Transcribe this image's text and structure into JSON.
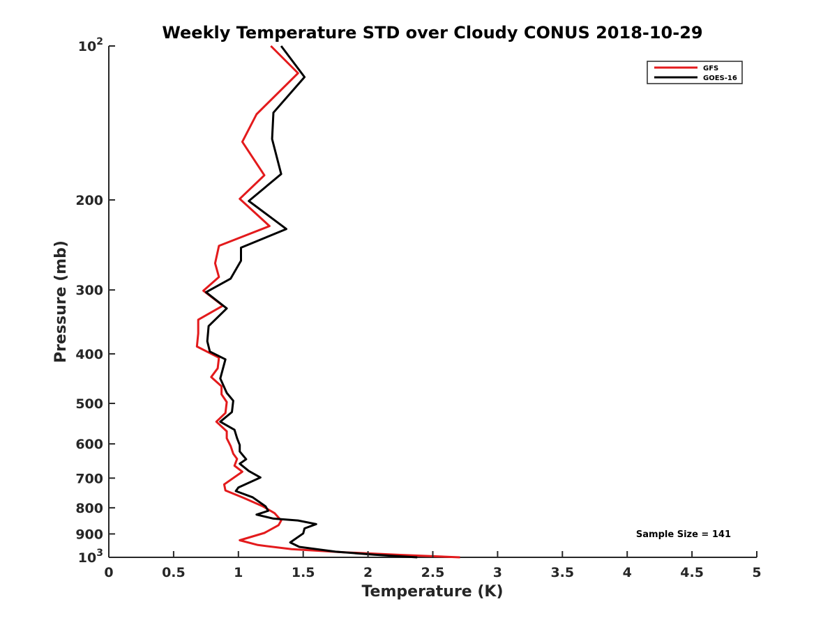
{
  "chart_data": {
    "type": "line",
    "title": "Weekly Temperature STD over Cloudy CONUS 2018-10-29",
    "xlabel": "Temperature (K)",
    "ylabel": "Pressure (mb)",
    "xlim": [
      0,
      5
    ],
    "ylim": [
      100,
      1000
    ],
    "y_scale": "log",
    "y_reversed": true,
    "grid": false,
    "legend_position": "top-right",
    "x_ticks": [
      {
        "value": 0,
        "label": "0"
      },
      {
        "value": 0.5,
        "label": "0.5"
      },
      {
        "value": 1,
        "label": "1"
      },
      {
        "value": 1.5,
        "label": "1.5"
      },
      {
        "value": 2,
        "label": "2"
      },
      {
        "value": 2.5,
        "label": "2.5"
      },
      {
        "value": 3,
        "label": "3"
      },
      {
        "value": 3.5,
        "label": "3.5"
      },
      {
        "value": 4,
        "label": "4"
      },
      {
        "value": 4.5,
        "label": "4.5"
      },
      {
        "value": 5,
        "label": "5"
      }
    ],
    "y_ticks": [
      {
        "value": 100,
        "base": "10",
        "exp": "2"
      },
      {
        "value": 200,
        "base": "200",
        "exp": ""
      },
      {
        "value": 300,
        "base": "300",
        "exp": ""
      },
      {
        "value": 400,
        "base": "400",
        "exp": ""
      },
      {
        "value": 500,
        "base": "500",
        "exp": ""
      },
      {
        "value": 600,
        "base": "600",
        "exp": ""
      },
      {
        "value": 700,
        "base": "700",
        "exp": ""
      },
      {
        "value": 800,
        "base": "800",
        "exp": ""
      },
      {
        "value": 900,
        "base": "900",
        "exp": ""
      },
      {
        "value": 1000,
        "base": "10",
        "exp": "3"
      }
    ],
    "series": [
      {
        "name": "GFS",
        "color": "#e31a1c",
        "points": [
          [
            1.25,
            100
          ],
          [
            1.46,
            113
          ],
          [
            1.14,
            136
          ],
          [
            1.03,
            154
          ],
          [
            1.2,
            179
          ],
          [
            1.01,
            199
          ],
          [
            1.24,
            225
          ],
          [
            0.85,
            246
          ],
          [
            0.82,
            266
          ],
          [
            0.85,
            283
          ],
          [
            0.73,
            301
          ],
          [
            0.88,
            322
          ],
          [
            0.69,
            343
          ],
          [
            0.69,
            365
          ],
          [
            0.68,
            387
          ],
          [
            0.85,
            407
          ],
          [
            0.84,
            427
          ],
          [
            0.79,
            444
          ],
          [
            0.87,
            463
          ],
          [
            0.87,
            480
          ],
          [
            0.91,
            497
          ],
          [
            0.9,
            522
          ],
          [
            0.83,
            543
          ],
          [
            0.91,
            567
          ],
          [
            0.91,
            585
          ],
          [
            0.94,
            606
          ],
          [
            0.96,
            627
          ],
          [
            0.99,
            642
          ],
          [
            0.97,
            662
          ],
          [
            1.03,
            680
          ],
          [
            0.89,
            720
          ],
          [
            0.9,
            740
          ],
          [
            1.04,
            765
          ],
          [
            1.19,
            795
          ],
          [
            1.28,
            820
          ],
          [
            1.33,
            847
          ],
          [
            1.31,
            865
          ],
          [
            1.2,
            896
          ],
          [
            1.01,
            926
          ],
          [
            1.15,
            946
          ],
          [
            1.41,
            964
          ],
          [
            1.8,
            977
          ],
          [
            2.25,
            989
          ],
          [
            2.71,
            1000
          ]
        ]
      },
      {
        "name": "GOES-16",
        "color": "#000000",
        "points": [
          [
            1.33,
            100
          ],
          [
            1.51,
            115
          ],
          [
            1.27,
            135
          ],
          [
            1.26,
            152
          ],
          [
            1.33,
            178
          ],
          [
            1.08,
            201
          ],
          [
            1.37,
            228
          ],
          [
            1.02,
            248
          ],
          [
            1.02,
            263
          ],
          [
            0.94,
            285
          ],
          [
            0.75,
            303
          ],
          [
            0.91,
            326
          ],
          [
            0.77,
            353
          ],
          [
            0.76,
            378
          ],
          [
            0.78,
            396
          ],
          [
            0.9,
            410
          ],
          [
            0.86,
            447
          ],
          [
            0.91,
            477
          ],
          [
            0.96,
            494
          ],
          [
            0.95,
            520
          ],
          [
            0.86,
            543
          ],
          [
            0.97,
            563
          ],
          [
            0.99,
            585
          ],
          [
            1.01,
            603
          ],
          [
            1.01,
            621
          ],
          [
            1.06,
            643
          ],
          [
            1.01,
            656
          ],
          [
            1.08,
            678
          ],
          [
            1.17,
            698
          ],
          [
            1.0,
            730
          ],
          [
            0.98,
            742
          ],
          [
            1.11,
            763
          ],
          [
            1.21,
            795
          ],
          [
            1.23,
            811
          ],
          [
            1.14,
            825
          ],
          [
            1.27,
            840
          ],
          [
            1.46,
            847
          ],
          [
            1.6,
            861
          ],
          [
            1.51,
            878
          ],
          [
            1.5,
            898
          ],
          [
            1.4,
            935
          ],
          [
            1.47,
            954
          ],
          [
            1.75,
            975
          ],
          [
            2.05,
            988
          ],
          [
            2.38,
            1000
          ]
        ]
      }
    ],
    "annotations": [
      {
        "text": "Sample Size = 141",
        "position": "bottom-right"
      }
    ]
  }
}
